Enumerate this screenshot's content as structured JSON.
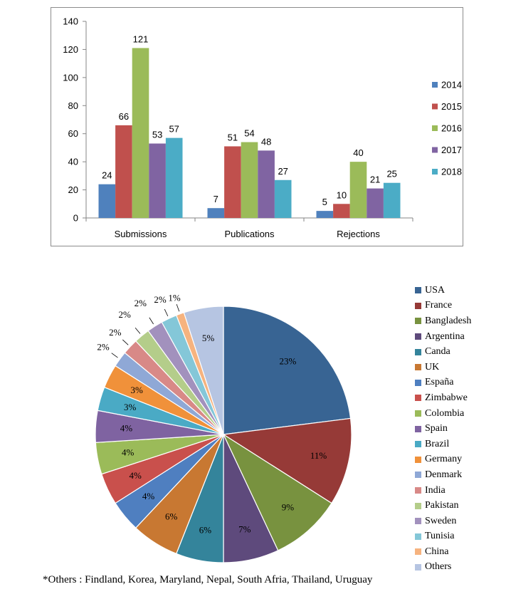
{
  "chart_data": [
    {
      "type": "bar",
      "title": "",
      "xlabel": "",
      "ylabel": "",
      "ylim": [
        0,
        140
      ],
      "yticks": [
        "0",
        "20",
        "40",
        "60",
        "80",
        "100",
        "120",
        "140"
      ],
      "categories": [
        "Submissions",
        "Publications",
        "Rejections"
      ],
      "series": [
        {
          "name": "2014",
          "color": "#4F81BD",
          "values": [
            24,
            7,
            5
          ]
        },
        {
          "name": "2015",
          "color": "#C0504D",
          "values": [
            66,
            51,
            10
          ]
        },
        {
          "name": "2016",
          "color": "#9BBB59",
          "values": [
            121,
            54,
            40
          ]
        },
        {
          "name": "2017",
          "color": "#8064A2",
          "values": [
            53,
            48,
            21
          ]
        },
        {
          "name": "2018",
          "color": "#4BACC6",
          "values": [
            57,
            27,
            25
          ]
        }
      ],
      "legend_position": "right"
    },
    {
      "type": "pie",
      "title": "",
      "slices": [
        {
          "label": "USA",
          "pct_label": "23%",
          "value": 23,
          "color": "#386493"
        },
        {
          "label": "France",
          "pct_label": "11%",
          "value": 11,
          "color": "#963a37"
        },
        {
          "label": "Bangladesh",
          "pct_label": "9%",
          "value": 9,
          "color": "#78923f"
        },
        {
          "label": "Argentina",
          "pct_label": "7%",
          "value": 7,
          "color": "#5e4a7c"
        },
        {
          "label": "Canda",
          "pct_label": "6%",
          "value": 6,
          "color": "#34849b"
        },
        {
          "label": "UK",
          "pct_label": "6%",
          "value": 6,
          "color": "#c87832"
        },
        {
          "label": "España",
          "pct_label": "4%",
          "value": 4,
          "color": "#4f7fc0"
        },
        {
          "label": "Zimbabwe",
          "pct_label": "4%",
          "value": 4,
          "color": "#c9504c"
        },
        {
          "label": "Colombia",
          "pct_label": "4%",
          "value": 4,
          "color": "#9bbb59"
        },
        {
          "label": "Spain",
          "pct_label": "4%",
          "value": 4,
          "color": "#7f63a1"
        },
        {
          "label": "Brazil",
          "pct_label": "3%",
          "value": 3,
          "color": "#4aaac5"
        },
        {
          "label": "Germany",
          "pct_label": "3%",
          "value": 3,
          "color": "#f0913a"
        },
        {
          "label": "Denmark",
          "pct_label": "2%",
          "value": 2,
          "color": "#8fa8d6"
        },
        {
          "label": "India",
          "pct_label": "2%",
          "value": 2,
          "color": "#d88987"
        },
        {
          "label": "Pakistan",
          "pct_label": "2%",
          "value": 2,
          "color": "#b4cd8a"
        },
        {
          "label": "Sweden",
          "pct_label": "2%",
          "value": 2,
          "color": "#a291bd"
        },
        {
          "label": "Tunisia",
          "pct_label": "2%",
          "value": 2,
          "color": "#84c7d8"
        },
        {
          "label": "China",
          "pct_label": "1%",
          "value": 1,
          "color": "#f6b37f"
        },
        {
          "label": "Others",
          "pct_label": "5%",
          "value": 5,
          "color": "#b6c5e2"
        }
      ],
      "legend_position": "right"
    }
  ],
  "footnote": "*Others : Findland, Korea, Maryland,  Nepal, South Afria, Thailand, Uruguay"
}
